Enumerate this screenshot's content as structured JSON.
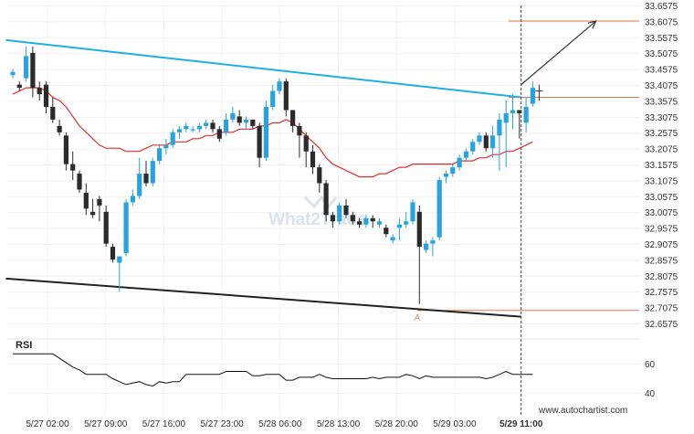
{
  "chart_data": {
    "type": "candlestick",
    "price_axis": {
      "ticks": [
        "33.6575",
        "33.6075",
        "33.5575",
        "33.5075",
        "33.4575",
        "33.4075",
        "33.3575",
        "33.3075",
        "33.2575",
        "33.2075",
        "33.1575",
        "33.1075",
        "33.0575",
        "33.0075",
        "32.9575",
        "32.9075",
        "32.8575",
        "32.8075",
        "32.7575",
        "32.7075",
        "32.6575"
      ],
      "range": [
        32.6575,
        33.6575
      ]
    },
    "time_axis": {
      "ticks": [
        "5/27 02:00",
        "5/27 09:00",
        "5/27 16:00",
        "5/27 23:00",
        "5/28 06:00",
        "5/28 13:00",
        "5/28 20:00",
        "5/29 03:00",
        "5/29 11:00"
      ],
      "current": "5/29 11:00"
    },
    "candle_colors": {
      "up": "#29a3de",
      "down": "#2b2b2b"
    },
    "ohlc": [
      [
        33.44,
        33.46,
        33.43,
        33.45
      ],
      [
        33.41,
        33.42,
        33.39,
        33.4
      ],
      [
        33.43,
        33.53,
        33.42,
        33.5
      ],
      [
        33.51,
        33.53,
        33.37,
        33.4
      ],
      [
        33.4,
        33.42,
        33.36,
        33.38
      ],
      [
        33.41,
        33.42,
        33.32,
        33.34
      ],
      [
        33.34,
        33.37,
        33.29,
        33.3
      ],
      [
        33.28,
        33.3,
        33.25,
        33.26
      ],
      [
        33.25,
        33.26,
        33.14,
        33.16
      ],
      [
        33.16,
        33.2,
        33.11,
        33.14
      ],
      [
        33.13,
        33.14,
        33.07,
        33.08
      ],
      [
        33.07,
        33.1,
        33.0,
        33.02
      ],
      [
        33.01,
        33.05,
        32.99,
        33.0
      ],
      [
        33.05,
        33.06,
        32.98,
        33.03
      ],
      [
        33.01,
        33.03,
        32.9,
        32.91
      ],
      [
        32.9,
        32.91,
        32.85,
        32.86
      ],
      [
        32.85,
        32.87,
        32.76,
        32.87
      ],
      [
        32.88,
        33.05,
        32.87,
        33.04
      ],
      [
        33.04,
        33.08,
        33.03,
        33.06
      ],
      [
        33.06,
        33.18,
        33.05,
        33.13
      ],
      [
        33.13,
        33.17,
        33.09,
        33.1
      ],
      [
        33.1,
        33.18,
        33.09,
        33.17
      ],
      [
        33.17,
        33.22,
        33.16,
        33.21
      ],
      [
        33.21,
        33.24,
        33.19,
        33.22
      ],
      [
        33.22,
        33.27,
        33.21,
        33.26
      ],
      [
        33.26,
        33.28,
        33.24,
        33.27
      ],
      [
        33.27,
        33.29,
        33.26,
        33.28
      ],
      [
        33.27,
        33.28,
        33.26,
        33.27
      ],
      [
        33.27,
        33.29,
        33.26,
        33.28
      ],
      [
        33.28,
        33.3,
        33.27,
        33.29
      ],
      [
        33.29,
        33.3,
        33.26,
        33.27
      ],
      [
        33.27,
        33.28,
        33.23,
        33.24
      ],
      [
        33.26,
        33.32,
        33.25,
        33.3
      ],
      [
        33.3,
        33.34,
        33.29,
        33.32
      ],
      [
        33.31,
        33.33,
        33.28,
        33.29
      ],
      [
        33.29,
        33.31,
        33.27,
        33.3
      ],
      [
        33.3,
        33.3,
        33.27,
        33.28
      ],
      [
        33.28,
        33.29,
        33.15,
        33.18
      ],
      [
        33.18,
        33.36,
        33.17,
        33.34
      ],
      [
        33.34,
        33.41,
        33.33,
        33.39
      ],
      [
        33.39,
        33.43,
        33.38,
        33.42
      ],
      [
        33.42,
        33.43,
        33.31,
        33.33
      ],
      [
        33.33,
        33.33,
        33.26,
        33.28
      ],
      [
        33.28,
        33.29,
        33.18,
        33.25
      ],
      [
        33.25,
        33.26,
        33.15,
        33.2
      ],
      [
        33.2,
        33.22,
        33.13,
        33.15
      ],
      [
        33.15,
        33.16,
        33.07,
        33.1
      ],
      [
        33.1,
        33.11,
        32.98,
        33.0
      ],
      [
        33.0,
        33.01,
        32.96,
        32.98
      ],
      [
        32.98,
        33.04,
        32.97,
        33.03
      ],
      [
        33.03,
        33.05,
        32.99,
        33.0
      ],
      [
        33.0,
        33.01,
        32.97,
        32.98
      ],
      [
        32.98,
        32.99,
        32.96,
        32.97
      ],
      [
        32.97,
        33.0,
        32.96,
        32.99
      ],
      [
        32.99,
        33.0,
        32.96,
        32.98
      ],
      [
        32.97,
        32.99,
        32.96,
        32.98
      ],
      [
        32.96,
        32.97,
        32.93,
        32.94
      ],
      [
        32.92,
        32.94,
        32.91,
        32.93
      ],
      [
        32.96,
        32.99,
        32.92,
        32.97
      ],
      [
        32.97,
        33.01,
        32.96,
        32.98
      ],
      [
        32.98,
        33.05,
        32.97,
        33.04
      ],
      [
        33.01,
        33.03,
        32.72,
        32.9
      ],
      [
        32.89,
        32.92,
        32.88,
        32.91
      ],
      [
        32.91,
        32.93,
        32.87,
        32.92
      ],
      [
        32.93,
        33.12,
        32.92,
        33.11
      ],
      [
        33.12,
        33.14,
        33.1,
        33.13
      ],
      [
        33.13,
        33.16,
        33.12,
        33.15
      ],
      [
        33.15,
        33.19,
        33.14,
        33.18
      ],
      [
        33.18,
        33.21,
        33.17,
        33.2
      ],
      [
        33.2,
        33.24,
        33.19,
        33.23
      ],
      [
        33.23,
        33.26,
        33.22,
        33.25
      ],
      [
        33.25,
        33.26,
        33.2,
        33.21
      ],
      [
        33.21,
        33.28,
        33.18,
        33.25
      ],
      [
        33.25,
        33.32,
        33.14,
        33.3
      ],
      [
        33.29,
        33.36,
        33.15,
        33.32
      ],
      [
        33.32,
        33.38,
        33.27,
        33.33
      ],
      [
        33.33,
        33.33,
        33.24,
        33.32
      ],
      [
        33.29,
        33.37,
        33.26,
        33.34
      ],
      [
        33.35,
        33.42,
        33.34,
        33.4
      ]
    ],
    "moving_average": {
      "color": "#e03030",
      "values": [
        33.38,
        33.39,
        33.4,
        33.4,
        33.4,
        33.39,
        33.37,
        33.36,
        33.34,
        33.31,
        33.28,
        33.26,
        33.24,
        33.22,
        33.21,
        33.21,
        33.21,
        33.2,
        33.2,
        33.2,
        33.21,
        33.22,
        33.22,
        33.22,
        33.23,
        33.23,
        33.23,
        33.24,
        33.24,
        33.25,
        33.25,
        33.26,
        33.26,
        33.26,
        33.27,
        33.27,
        33.27,
        33.28,
        33.28,
        33.29,
        33.29,
        33.3,
        33.29,
        33.27,
        33.25,
        33.23,
        33.21,
        33.18,
        33.16,
        33.15,
        33.14,
        33.13,
        33.12,
        33.12,
        33.12,
        33.13,
        33.13,
        33.14,
        33.15,
        33.15,
        33.16,
        33.16,
        33.16,
        33.16,
        33.16,
        33.16,
        33.16,
        33.17,
        33.17,
        33.17,
        33.18,
        33.18,
        33.19,
        33.19,
        33.2,
        33.2,
        33.21,
        33.22,
        33.23
      ]
    },
    "resistance_line": {
      "color": "#1fb0e0",
      "start": {
        "x": "5/26 21:00",
        "y": 33.55
      },
      "end": {
        "x": "5/29 11:00",
        "y": 33.37
      }
    },
    "support_line": {
      "color": "#222222",
      "start": {
        "x": "5/26 21:00",
        "y": 32.8
      },
      "end": {
        "x": "5/29 11:00",
        "y": 32.68
      }
    },
    "levels": {
      "color": "#e07a4e",
      "target": 33.61,
      "breakout": 33.37,
      "low": 32.7
    },
    "low_marker": "A",
    "forecast_arrow": {
      "color": "#333333",
      "from": {
        "x": "5/29 11:00",
        "y": 33.41
      },
      "to": {
        "x": "5/29 20:00",
        "y": 33.61
      }
    },
    "rsi": {
      "label": "RSI",
      "ticks": [
        "60",
        "40"
      ],
      "range": [
        20,
        80
      ],
      "color": "#111111",
      "values": [
        67,
        67,
        67,
        67,
        67,
        67,
        67,
        64,
        61,
        58,
        56,
        53,
        53,
        53,
        53,
        50,
        48,
        46,
        47,
        48,
        46,
        45,
        48,
        47,
        48,
        48,
        53,
        53,
        53,
        53,
        53,
        53,
        55,
        55,
        55,
        55,
        52,
        52,
        53,
        53,
        53,
        49,
        49,
        51,
        51,
        51,
        53,
        51,
        50,
        50,
        50,
        50,
        50,
        50,
        51,
        50,
        51,
        51,
        51,
        53,
        52,
        50,
        52,
        51,
        51,
        51,
        51,
        51,
        51,
        51,
        51,
        50,
        51,
        53,
        55,
        53,
        53,
        53,
        53
      ]
    },
    "watermark": "What2Trade",
    "credit": "www.autochartist.com"
  }
}
